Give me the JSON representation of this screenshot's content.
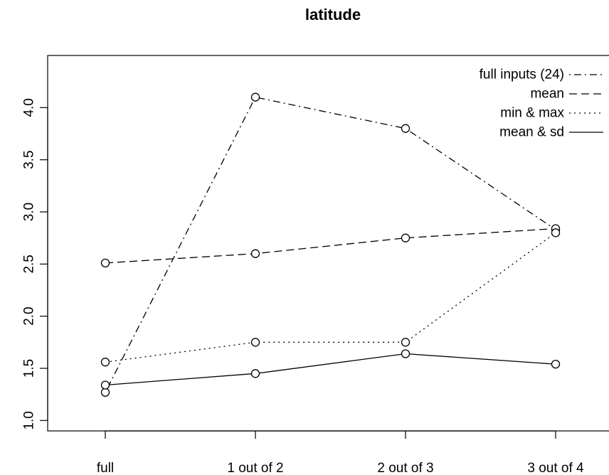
{
  "chart_data": {
    "type": "line",
    "title": "latitude",
    "xlabel": "",
    "ylabel": "",
    "categories": [
      "full",
      "1 out of 2",
      "2 out of 3",
      "3 out of 4"
    ],
    "ylim": [
      0.9,
      4.5
    ],
    "yticks": [
      "1.0",
      "1.5",
      "2.0",
      "2.5",
      "3.0",
      "3.5",
      "4.0"
    ],
    "legend_position": "top-right",
    "grid": false,
    "series": [
      {
        "name": "full inputs (24)",
        "dash": "dotdash",
        "values": [
          1.27,
          4.1,
          3.8,
          2.83
        ]
      },
      {
        "name": "mean",
        "dash": "dashed",
        "values": [
          2.51,
          2.6,
          2.75,
          2.84
        ]
      },
      {
        "name": "min & max",
        "dash": "dotted",
        "values": [
          1.56,
          1.75,
          1.75,
          2.8
        ]
      },
      {
        "name": "mean & sd",
        "dash": "solid",
        "values": [
          1.34,
          1.45,
          1.64,
          1.54
        ]
      }
    ]
  }
}
